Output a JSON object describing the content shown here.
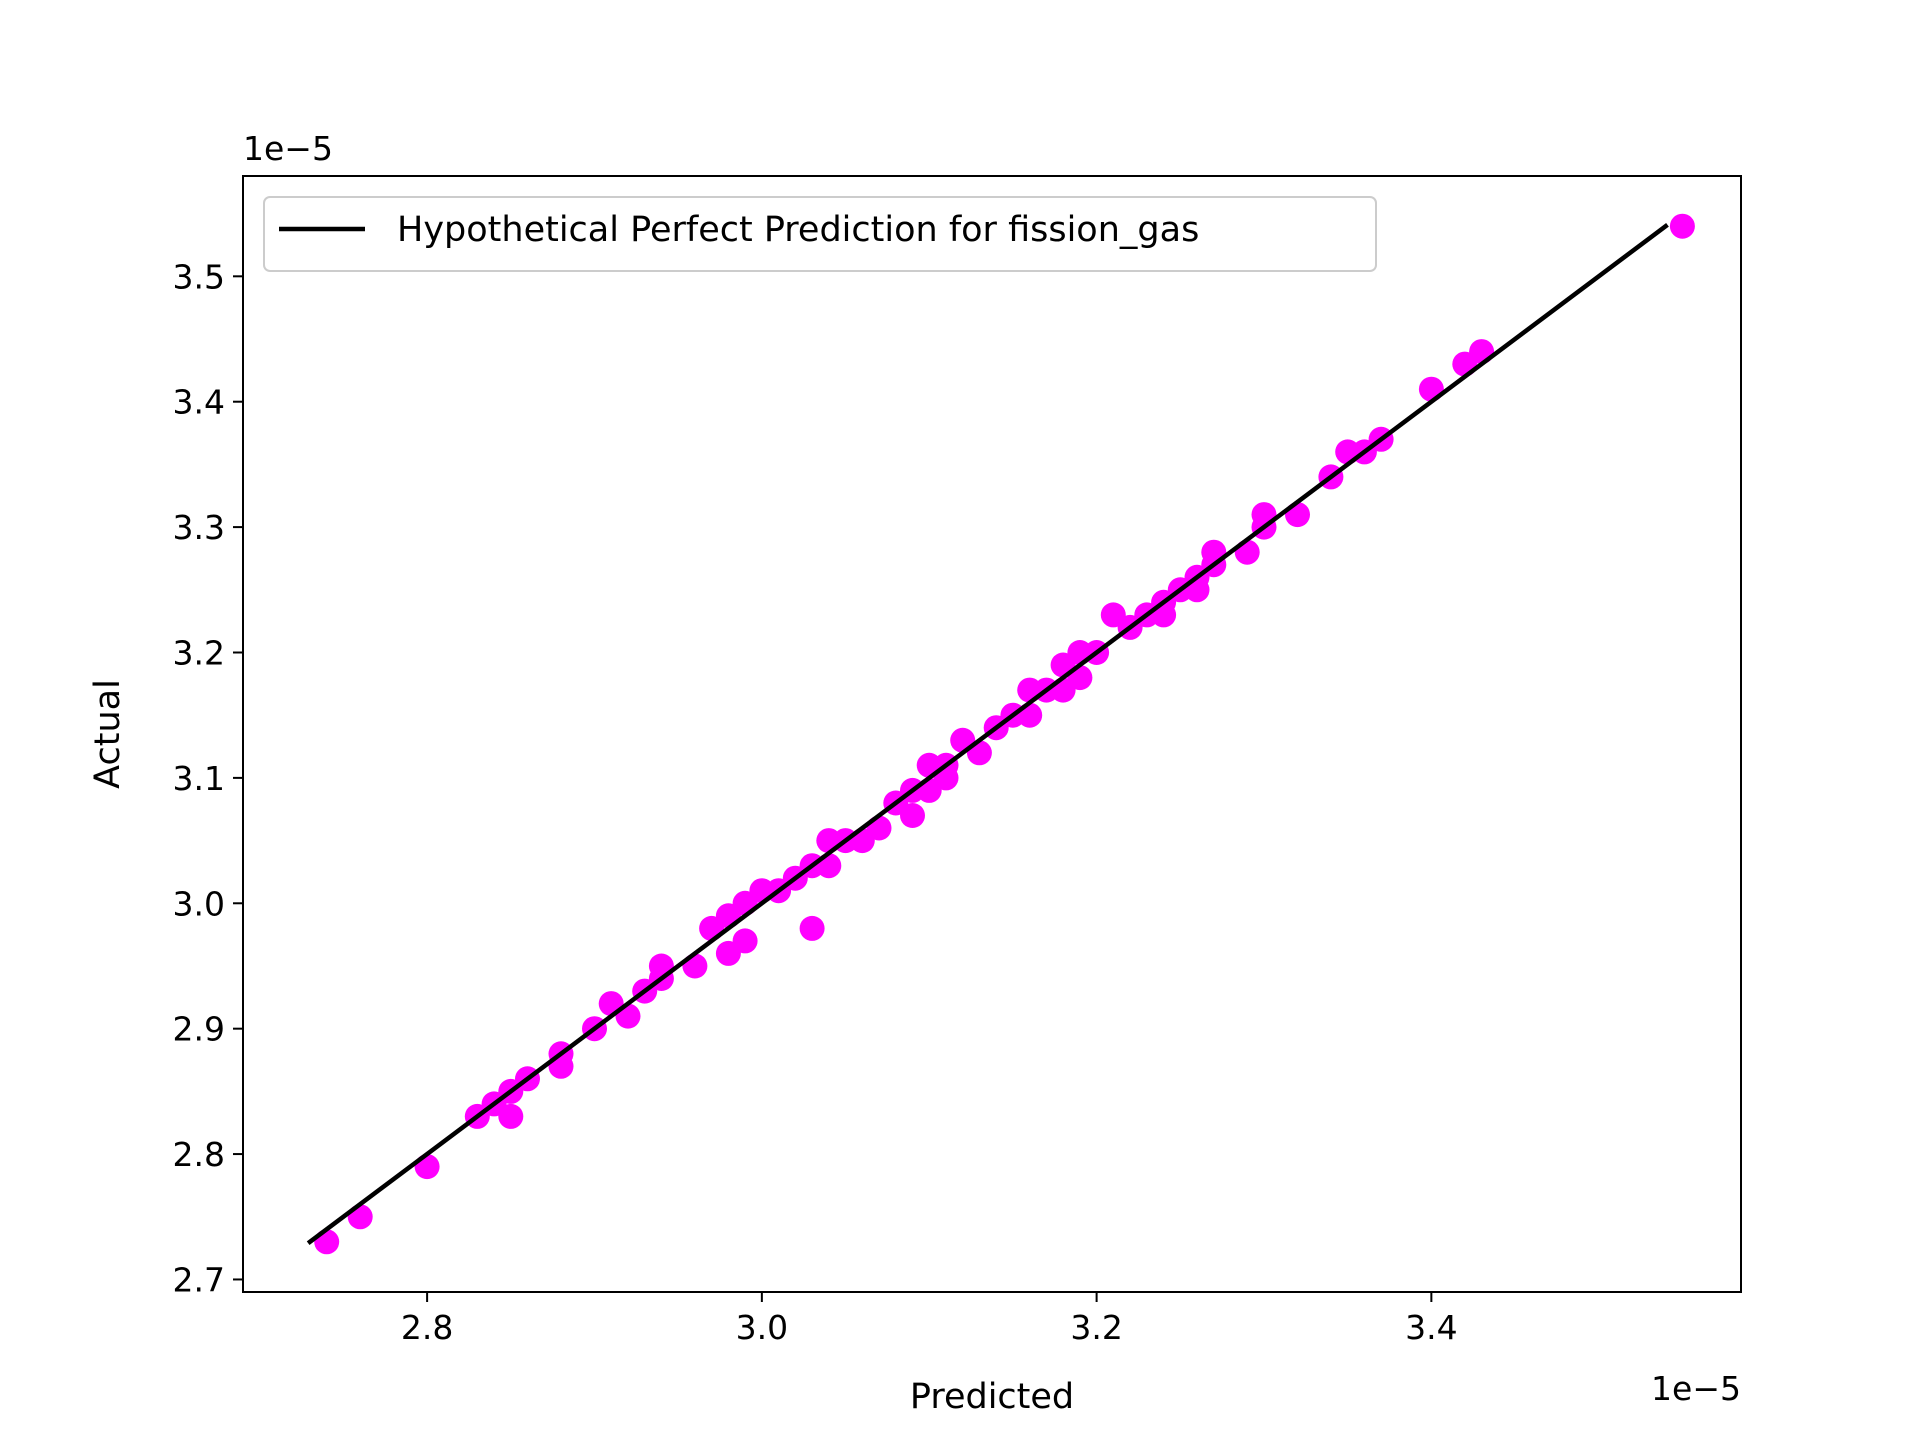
{
  "chart_data": {
    "type": "scatter",
    "xlabel": "Predicted",
    "ylabel": "Actual",
    "x_offset_text": "1e−5",
    "y_offset_text": "1e−5",
    "xlim": [
      2.69,
      3.585
    ],
    "ylim": [
      2.69,
      3.58
    ],
    "x_ticks": [
      2.8,
      3.0,
      3.2,
      3.4
    ],
    "x_tick_labels": [
      "2.8",
      "3.0",
      "3.2",
      "3.4"
    ],
    "y_ticks": [
      2.7,
      2.8,
      2.9,
      3.0,
      3.1,
      3.2,
      3.3,
      3.4,
      3.5
    ],
    "y_tick_labels": [
      "2.7",
      "2.8",
      "2.9",
      "3.0",
      "3.1",
      "3.2",
      "3.3",
      "3.4",
      "3.5"
    ],
    "grid": false,
    "legend": {
      "position": "top-left",
      "entries": [
        "Hypothetical Perfect Prediction for fission_gas"
      ]
    },
    "scatter_color": "#ff00ff",
    "line_color": "#000000",
    "line": {
      "x": [
        2.73,
        3.54
      ],
      "y": [
        2.73,
        3.54
      ]
    },
    "points": [
      [
        2.74,
        2.73
      ],
      [
        2.76,
        2.75
      ],
      [
        2.8,
        2.79
      ],
      [
        2.83,
        2.83
      ],
      [
        2.84,
        2.84
      ],
      [
        2.85,
        2.85
      ],
      [
        2.85,
        2.83
      ],
      [
        2.86,
        2.86
      ],
      [
        2.88,
        2.87
      ],
      [
        2.88,
        2.88
      ],
      [
        2.9,
        2.9
      ],
      [
        2.91,
        2.92
      ],
      [
        2.92,
        2.91
      ],
      [
        2.93,
        2.93
      ],
      [
        2.94,
        2.95
      ],
      [
        2.94,
        2.94
      ],
      [
        2.96,
        2.95
      ],
      [
        2.97,
        2.98
      ],
      [
        2.98,
        2.96
      ],
      [
        2.98,
        2.99
      ],
      [
        2.99,
        2.97
      ],
      [
        2.99,
        3.0
      ],
      [
        3.0,
        3.01
      ],
      [
        3.01,
        3.01
      ],
      [
        3.02,
        3.02
      ],
      [
        3.03,
        3.03
      ],
      [
        3.03,
        2.98
      ],
      [
        3.04,
        3.03
      ],
      [
        3.04,
        3.05
      ],
      [
        3.05,
        3.05
      ],
      [
        3.06,
        3.05
      ],
      [
        3.07,
        3.06
      ],
      [
        3.08,
        3.08
      ],
      [
        3.09,
        3.09
      ],
      [
        3.09,
        3.07
      ],
      [
        3.1,
        3.11
      ],
      [
        3.1,
        3.09
      ],
      [
        3.11,
        3.1
      ],
      [
        3.11,
        3.11
      ],
      [
        3.12,
        3.13
      ],
      [
        3.13,
        3.12
      ],
      [
        3.14,
        3.14
      ],
      [
        3.15,
        3.15
      ],
      [
        3.16,
        3.17
      ],
      [
        3.16,
        3.15
      ],
      [
        3.17,
        3.17
      ],
      [
        3.18,
        3.19
      ],
      [
        3.18,
        3.17
      ],
      [
        3.19,
        3.18
      ],
      [
        3.19,
        3.2
      ],
      [
        3.2,
        3.2
      ],
      [
        3.21,
        3.23
      ],
      [
        3.22,
        3.22
      ],
      [
        3.23,
        3.23
      ],
      [
        3.24,
        3.24
      ],
      [
        3.24,
        3.23
      ],
      [
        3.25,
        3.25
      ],
      [
        3.26,
        3.25
      ],
      [
        3.26,
        3.26
      ],
      [
        3.27,
        3.28
      ],
      [
        3.27,
        3.27
      ],
      [
        3.29,
        3.28
      ],
      [
        3.3,
        3.3
      ],
      [
        3.3,
        3.31
      ],
      [
        3.32,
        3.31
      ],
      [
        3.34,
        3.34
      ],
      [
        3.35,
        3.36
      ],
      [
        3.36,
        3.36
      ],
      [
        3.37,
        3.37
      ],
      [
        3.4,
        3.41
      ],
      [
        3.42,
        3.43
      ],
      [
        3.43,
        3.44
      ],
      [
        3.55,
        3.54
      ]
    ]
  }
}
